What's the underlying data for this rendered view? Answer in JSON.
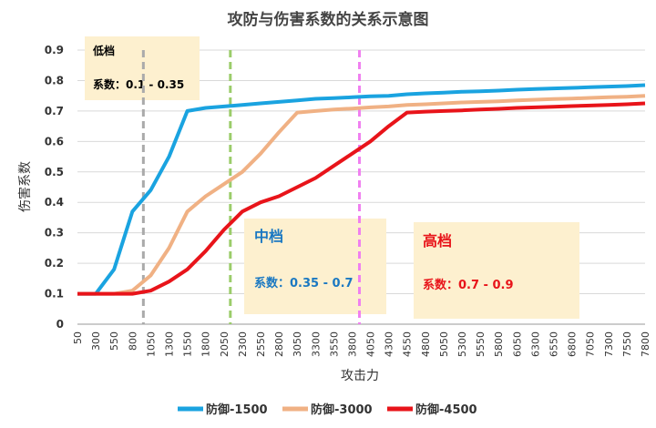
{
  "chart_data": {
    "type": "line",
    "title": "攻防与伤害系数的关系示意图",
    "xlabel": "攻击力",
    "ylabel": "伤害系数",
    "ylim": [
      0,
      0.9
    ],
    "yticks": [
      "0",
      "0.1",
      "0.2",
      "0.3",
      "0.4",
      "0.5",
      "0.6",
      "0.7",
      "0.8",
      "0.9"
    ],
    "categories": [
      "50",
      "300",
      "550",
      "800",
      "1050",
      "1300",
      "1550",
      "1800",
      "2050",
      "2300",
      "2550",
      "2800",
      "3050",
      "3300",
      "3550",
      "3800",
      "4050",
      "4300",
      "4550",
      "4800",
      "5050",
      "5300",
      "5550",
      "5800",
      "6050",
      "6300",
      "6550",
      "6800",
      "7050",
      "7300",
      "7550",
      "7800"
    ],
    "series": [
      {
        "name": "防御-1500",
        "color": "#1aa3e0",
        "values": [
          0.1,
          0.1,
          0.18,
          0.37,
          0.44,
          0.55,
          0.7,
          0.71,
          0.715,
          0.72,
          0.725,
          0.73,
          0.735,
          0.74,
          0.742,
          0.745,
          0.748,
          0.75,
          0.755,
          0.758,
          0.76,
          0.763,
          0.765,
          0.767,
          0.77,
          0.772,
          0.774,
          0.776,
          0.778,
          0.78,
          0.782,
          0.785
        ]
      },
      {
        "name": "防御-3000",
        "color": "#f0b184",
        "values": [
          0.1,
          0.1,
          0.1,
          0.11,
          0.16,
          0.25,
          0.37,
          0.42,
          0.46,
          0.5,
          0.56,
          0.63,
          0.695,
          0.7,
          0.705,
          0.708,
          0.712,
          0.715,
          0.72,
          0.722,
          0.725,
          0.728,
          0.73,
          0.732,
          0.735,
          0.737,
          0.739,
          0.741,
          0.743,
          0.745,
          0.747,
          0.75
        ]
      },
      {
        "name": "防御-4500",
        "color": "#e8141a",
        "values": [
          0.1,
          0.1,
          0.1,
          0.1,
          0.11,
          0.14,
          0.18,
          0.24,
          0.31,
          0.37,
          0.4,
          0.42,
          0.45,
          0.48,
          0.52,
          0.56,
          0.6,
          0.65,
          0.695,
          0.698,
          0.7,
          0.702,
          0.705,
          0.707,
          0.71,
          0.712,
          0.714,
          0.716,
          0.718,
          0.72,
          0.722,
          0.725
        ]
      }
    ],
    "vlines": [
      {
        "name": "low-boundary",
        "index": 3.6,
        "color": "#aaaaaa"
      },
      {
        "name": "mid-boundary",
        "index": 8.35,
        "color": "#9bcc6a"
      },
      {
        "name": "high-boundary",
        "index": 15.4,
        "color": "#f080f0"
      }
    ],
    "zones": {
      "low": {
        "label": "低档",
        "range_text": "系数：0.1 - 0.35",
        "color": "#000000"
      },
      "mid": {
        "label": "中档",
        "range_text": "系数：0.35 - 0.7",
        "color": "#1a78c2"
      },
      "high": {
        "label": "高档",
        "range_text": "系数：0.7 - 0.9",
        "color": "#e8141a"
      }
    },
    "legend_position": "bottom"
  }
}
